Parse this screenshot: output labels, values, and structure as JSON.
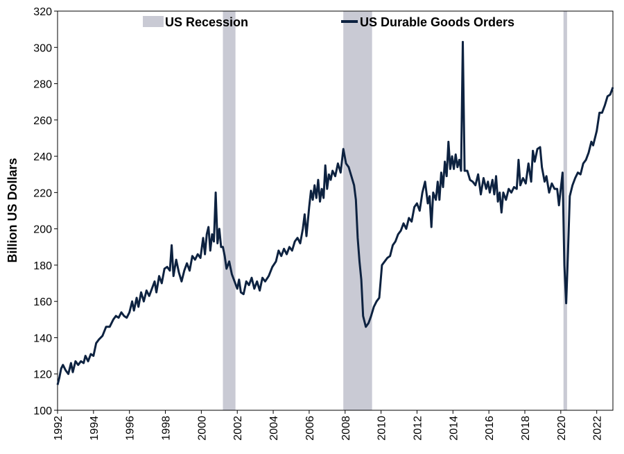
{
  "chart_data": {
    "type": "line",
    "title": "",
    "xlabel": "",
    "ylabel": "Billion US Dollars",
    "xlim": [
      1992,
      2022.9
    ],
    "ylim": [
      100,
      320
    ],
    "y_ticks": [
      100,
      120,
      140,
      160,
      180,
      200,
      220,
      240,
      260,
      280,
      300,
      320
    ],
    "x_ticks": [
      "1992",
      "1994",
      "1996",
      "1998",
      "2000",
      "2002",
      "2004",
      "2006",
      "2008",
      "2010",
      "2012",
      "2014",
      "2016",
      "2018",
      "2020",
      "2022"
    ],
    "grid": false,
    "legend_position": "top",
    "legend": [
      {
        "label": "US Recession",
        "kind": "band"
      },
      {
        "label": "US Durable Goods Orders",
        "kind": "line"
      }
    ],
    "recession_periods": [
      {
        "start": 2001.2,
        "end": 2001.9
      },
      {
        "start": 2007.9,
        "end": 2009.5
      },
      {
        "start": 2020.15,
        "end": 2020.35
      }
    ],
    "series": [
      {
        "name": "US Durable Goods Orders",
        "color": "#0d2240",
        "recession_color": "#c9cad4",
        "points": [
          [
            1992.0,
            114
          ],
          [
            1992.1,
            118
          ],
          [
            1992.2,
            123
          ],
          [
            1992.3,
            125
          ],
          [
            1992.45,
            122
          ],
          [
            1992.6,
            120
          ],
          [
            1992.75,
            126
          ],
          [
            1992.85,
            121
          ],
          [
            1993.0,
            127
          ],
          [
            1993.15,
            125
          ],
          [
            1993.3,
            127
          ],
          [
            1993.45,
            126
          ],
          [
            1993.55,
            130
          ],
          [
            1993.7,
            127
          ],
          [
            1993.85,
            131
          ],
          [
            1994.0,
            130
          ],
          [
            1994.15,
            137
          ],
          [
            1994.3,
            139
          ],
          [
            1994.5,
            141
          ],
          [
            1994.7,
            146
          ],
          [
            1994.9,
            146
          ],
          [
            1995.1,
            150
          ],
          [
            1995.25,
            152
          ],
          [
            1995.4,
            151
          ],
          [
            1995.55,
            154
          ],
          [
            1995.7,
            152
          ],
          [
            1995.85,
            151
          ],
          [
            1996.0,
            154
          ],
          [
            1996.15,
            160
          ],
          [
            1996.25,
            155
          ],
          [
            1996.4,
            162
          ],
          [
            1996.5,
            157
          ],
          [
            1996.65,
            165
          ],
          [
            1996.8,
            160
          ],
          [
            1996.95,
            166
          ],
          [
            1997.1,
            163
          ],
          [
            1997.25,
            167
          ],
          [
            1997.4,
            171
          ],
          [
            1997.5,
            165
          ],
          [
            1997.65,
            174
          ],
          [
            1997.8,
            170
          ],
          [
            1997.95,
            178
          ],
          [
            1998.1,
            179
          ],
          [
            1998.25,
            177
          ],
          [
            1998.35,
            191
          ],
          [
            1998.45,
            174
          ],
          [
            1998.6,
            183
          ],
          [
            1998.75,
            176
          ],
          [
            1998.9,
            171
          ],
          [
            1999.05,
            177
          ],
          [
            1999.2,
            181
          ],
          [
            1999.35,
            177
          ],
          [
            1999.5,
            185
          ],
          [
            1999.65,
            183
          ],
          [
            1999.8,
            186
          ],
          [
            1999.95,
            184
          ],
          [
            2000.1,
            195
          ],
          [
            2000.2,
            186
          ],
          [
            2000.3,
            197
          ],
          [
            2000.4,
            201
          ],
          [
            2000.5,
            188
          ],
          [
            2000.6,
            197
          ],
          [
            2000.7,
            193
          ],
          [
            2000.8,
            220
          ],
          [
            2000.9,
            192
          ],
          [
            2001.0,
            200
          ],
          [
            2001.1,
            190
          ],
          [
            2001.2,
            190
          ],
          [
            2001.3,
            185
          ],
          [
            2001.4,
            178
          ],
          [
            2001.55,
            182
          ],
          [
            2001.7,
            175
          ],
          [
            2001.85,
            171
          ],
          [
            2002.0,
            167
          ],
          [
            2002.1,
            172
          ],
          [
            2002.2,
            165
          ],
          [
            2002.35,
            164
          ],
          [
            2002.5,
            171
          ],
          [
            2002.65,
            169
          ],
          [
            2002.8,
            173
          ],
          [
            2002.95,
            167
          ],
          [
            2003.1,
            171
          ],
          [
            2003.25,
            166
          ],
          [
            2003.4,
            173
          ],
          [
            2003.55,
            171
          ],
          [
            2003.75,
            174
          ],
          [
            2003.95,
            179
          ],
          [
            2004.15,
            182
          ],
          [
            2004.3,
            188
          ],
          [
            2004.45,
            185
          ],
          [
            2004.6,
            189
          ],
          [
            2004.75,
            186
          ],
          [
            2004.9,
            190
          ],
          [
            2005.05,
            188
          ],
          [
            2005.2,
            193
          ],
          [
            2005.35,
            195
          ],
          [
            2005.5,
            192
          ],
          [
            2005.65,
            200
          ],
          [
            2005.75,
            208
          ],
          [
            2005.85,
            196
          ],
          [
            2006.0,
            212
          ],
          [
            2006.1,
            221
          ],
          [
            2006.2,
            216
          ],
          [
            2006.3,
            224
          ],
          [
            2006.4,
            217
          ],
          [
            2006.5,
            227
          ],
          [
            2006.6,
            215
          ],
          [
            2006.7,
            222
          ],
          [
            2006.8,
            217
          ],
          [
            2006.9,
            235
          ],
          [
            2007.0,
            222
          ],
          [
            2007.1,
            230
          ],
          [
            2007.2,
            227
          ],
          [
            2007.3,
            232
          ],
          [
            2007.45,
            229
          ],
          [
            2007.6,
            236
          ],
          [
            2007.75,
            231
          ],
          [
            2007.9,
            244
          ],
          [
            2008.05,
            236
          ],
          [
            2008.2,
            234
          ],
          [
            2008.35,
            229
          ],
          [
            2008.5,
            224
          ],
          [
            2008.6,
            216
          ],
          [
            2008.7,
            195
          ],
          [
            2008.8,
            182
          ],
          [
            2008.9,
            172
          ],
          [
            2009.0,
            152
          ],
          [
            2009.15,
            146
          ],
          [
            2009.3,
            148
          ],
          [
            2009.45,
            152
          ],
          [
            2009.6,
            157
          ],
          [
            2009.75,
            160
          ],
          [
            2009.9,
            162
          ],
          [
            2010.05,
            180
          ],
          [
            2010.2,
            182
          ],
          [
            2010.35,
            184
          ],
          [
            2010.5,
            185
          ],
          [
            2010.65,
            191
          ],
          [
            2010.8,
            193
          ],
          [
            2010.95,
            197
          ],
          [
            2011.1,
            199
          ],
          [
            2011.25,
            203
          ],
          [
            2011.4,
            200
          ],
          [
            2011.55,
            206
          ],
          [
            2011.7,
            204
          ],
          [
            2011.85,
            212
          ],
          [
            2012.0,
            214
          ],
          [
            2012.15,
            210
          ],
          [
            2012.3,
            220
          ],
          [
            2012.45,
            226
          ],
          [
            2012.6,
            214
          ],
          [
            2012.7,
            218
          ],
          [
            2012.8,
            201
          ],
          [
            2012.9,
            220
          ],
          [
            2013.05,
            216
          ],
          [
            2013.15,
            226
          ],
          [
            2013.25,
            216
          ],
          [
            2013.35,
            231
          ],
          [
            2013.45,
            223
          ],
          [
            2013.55,
            237
          ],
          [
            2013.65,
            229
          ],
          [
            2013.75,
            248
          ],
          [
            2013.85,
            233
          ],
          [
            2013.95,
            240
          ],
          [
            2014.05,
            233
          ],
          [
            2014.15,
            241
          ],
          [
            2014.25,
            234
          ],
          [
            2014.35,
            238
          ],
          [
            2014.45,
            232
          ],
          [
            2014.55,
            303
          ],
          [
            2014.65,
            232
          ],
          [
            2014.8,
            232
          ],
          [
            2014.95,
            227
          ],
          [
            2015.1,
            226
          ],
          [
            2015.25,
            224
          ],
          [
            2015.4,
            230
          ],
          [
            2015.55,
            219
          ],
          [
            2015.7,
            228
          ],
          [
            2015.85,
            222
          ],
          [
            2015.95,
            226
          ],
          [
            2016.05,
            220
          ],
          [
            2016.2,
            227
          ],
          [
            2016.3,
            219
          ],
          [
            2016.4,
            229
          ],
          [
            2016.5,
            215
          ],
          [
            2016.6,
            220
          ],
          [
            2016.7,
            209
          ],
          [
            2016.8,
            220
          ],
          [
            2016.95,
            216
          ],
          [
            2017.1,
            222
          ],
          [
            2017.25,
            220
          ],
          [
            2017.4,
            223
          ],
          [
            2017.55,
            222
          ],
          [
            2017.65,
            238
          ],
          [
            2017.75,
            224
          ],
          [
            2017.9,
            228
          ],
          [
            2018.05,
            225
          ],
          [
            2018.2,
            236
          ],
          [
            2018.35,
            226
          ],
          [
            2018.45,
            243
          ],
          [
            2018.55,
            237
          ],
          [
            2018.7,
            244
          ],
          [
            2018.85,
            245
          ],
          [
            2018.95,
            234
          ],
          [
            2019.1,
            226
          ],
          [
            2019.2,
            229
          ],
          [
            2019.35,
            220
          ],
          [
            2019.5,
            225
          ],
          [
            2019.65,
            222
          ],
          [
            2019.8,
            222
          ],
          [
            2019.9,
            213
          ],
          [
            2020.0,
            222
          ],
          [
            2020.1,
            231
          ],
          [
            2020.2,
            180
          ],
          [
            2020.3,
            159
          ],
          [
            2020.4,
            187
          ],
          [
            2020.5,
            218
          ],
          [
            2020.65,
            224
          ],
          [
            2020.8,
            228
          ],
          [
            2020.95,
            231
          ],
          [
            2021.1,
            230
          ],
          [
            2021.25,
            236
          ],
          [
            2021.4,
            238
          ],
          [
            2021.55,
            242
          ],
          [
            2021.7,
            248
          ],
          [
            2021.8,
            246
          ],
          [
            2021.9,
            250
          ],
          [
            2022.0,
            254
          ],
          [
            2022.15,
            264
          ],
          [
            2022.3,
            264
          ],
          [
            2022.45,
            268
          ],
          [
            2022.6,
            273
          ],
          [
            2022.75,
            274
          ],
          [
            2022.9,
            278
          ]
        ]
      }
    ]
  }
}
